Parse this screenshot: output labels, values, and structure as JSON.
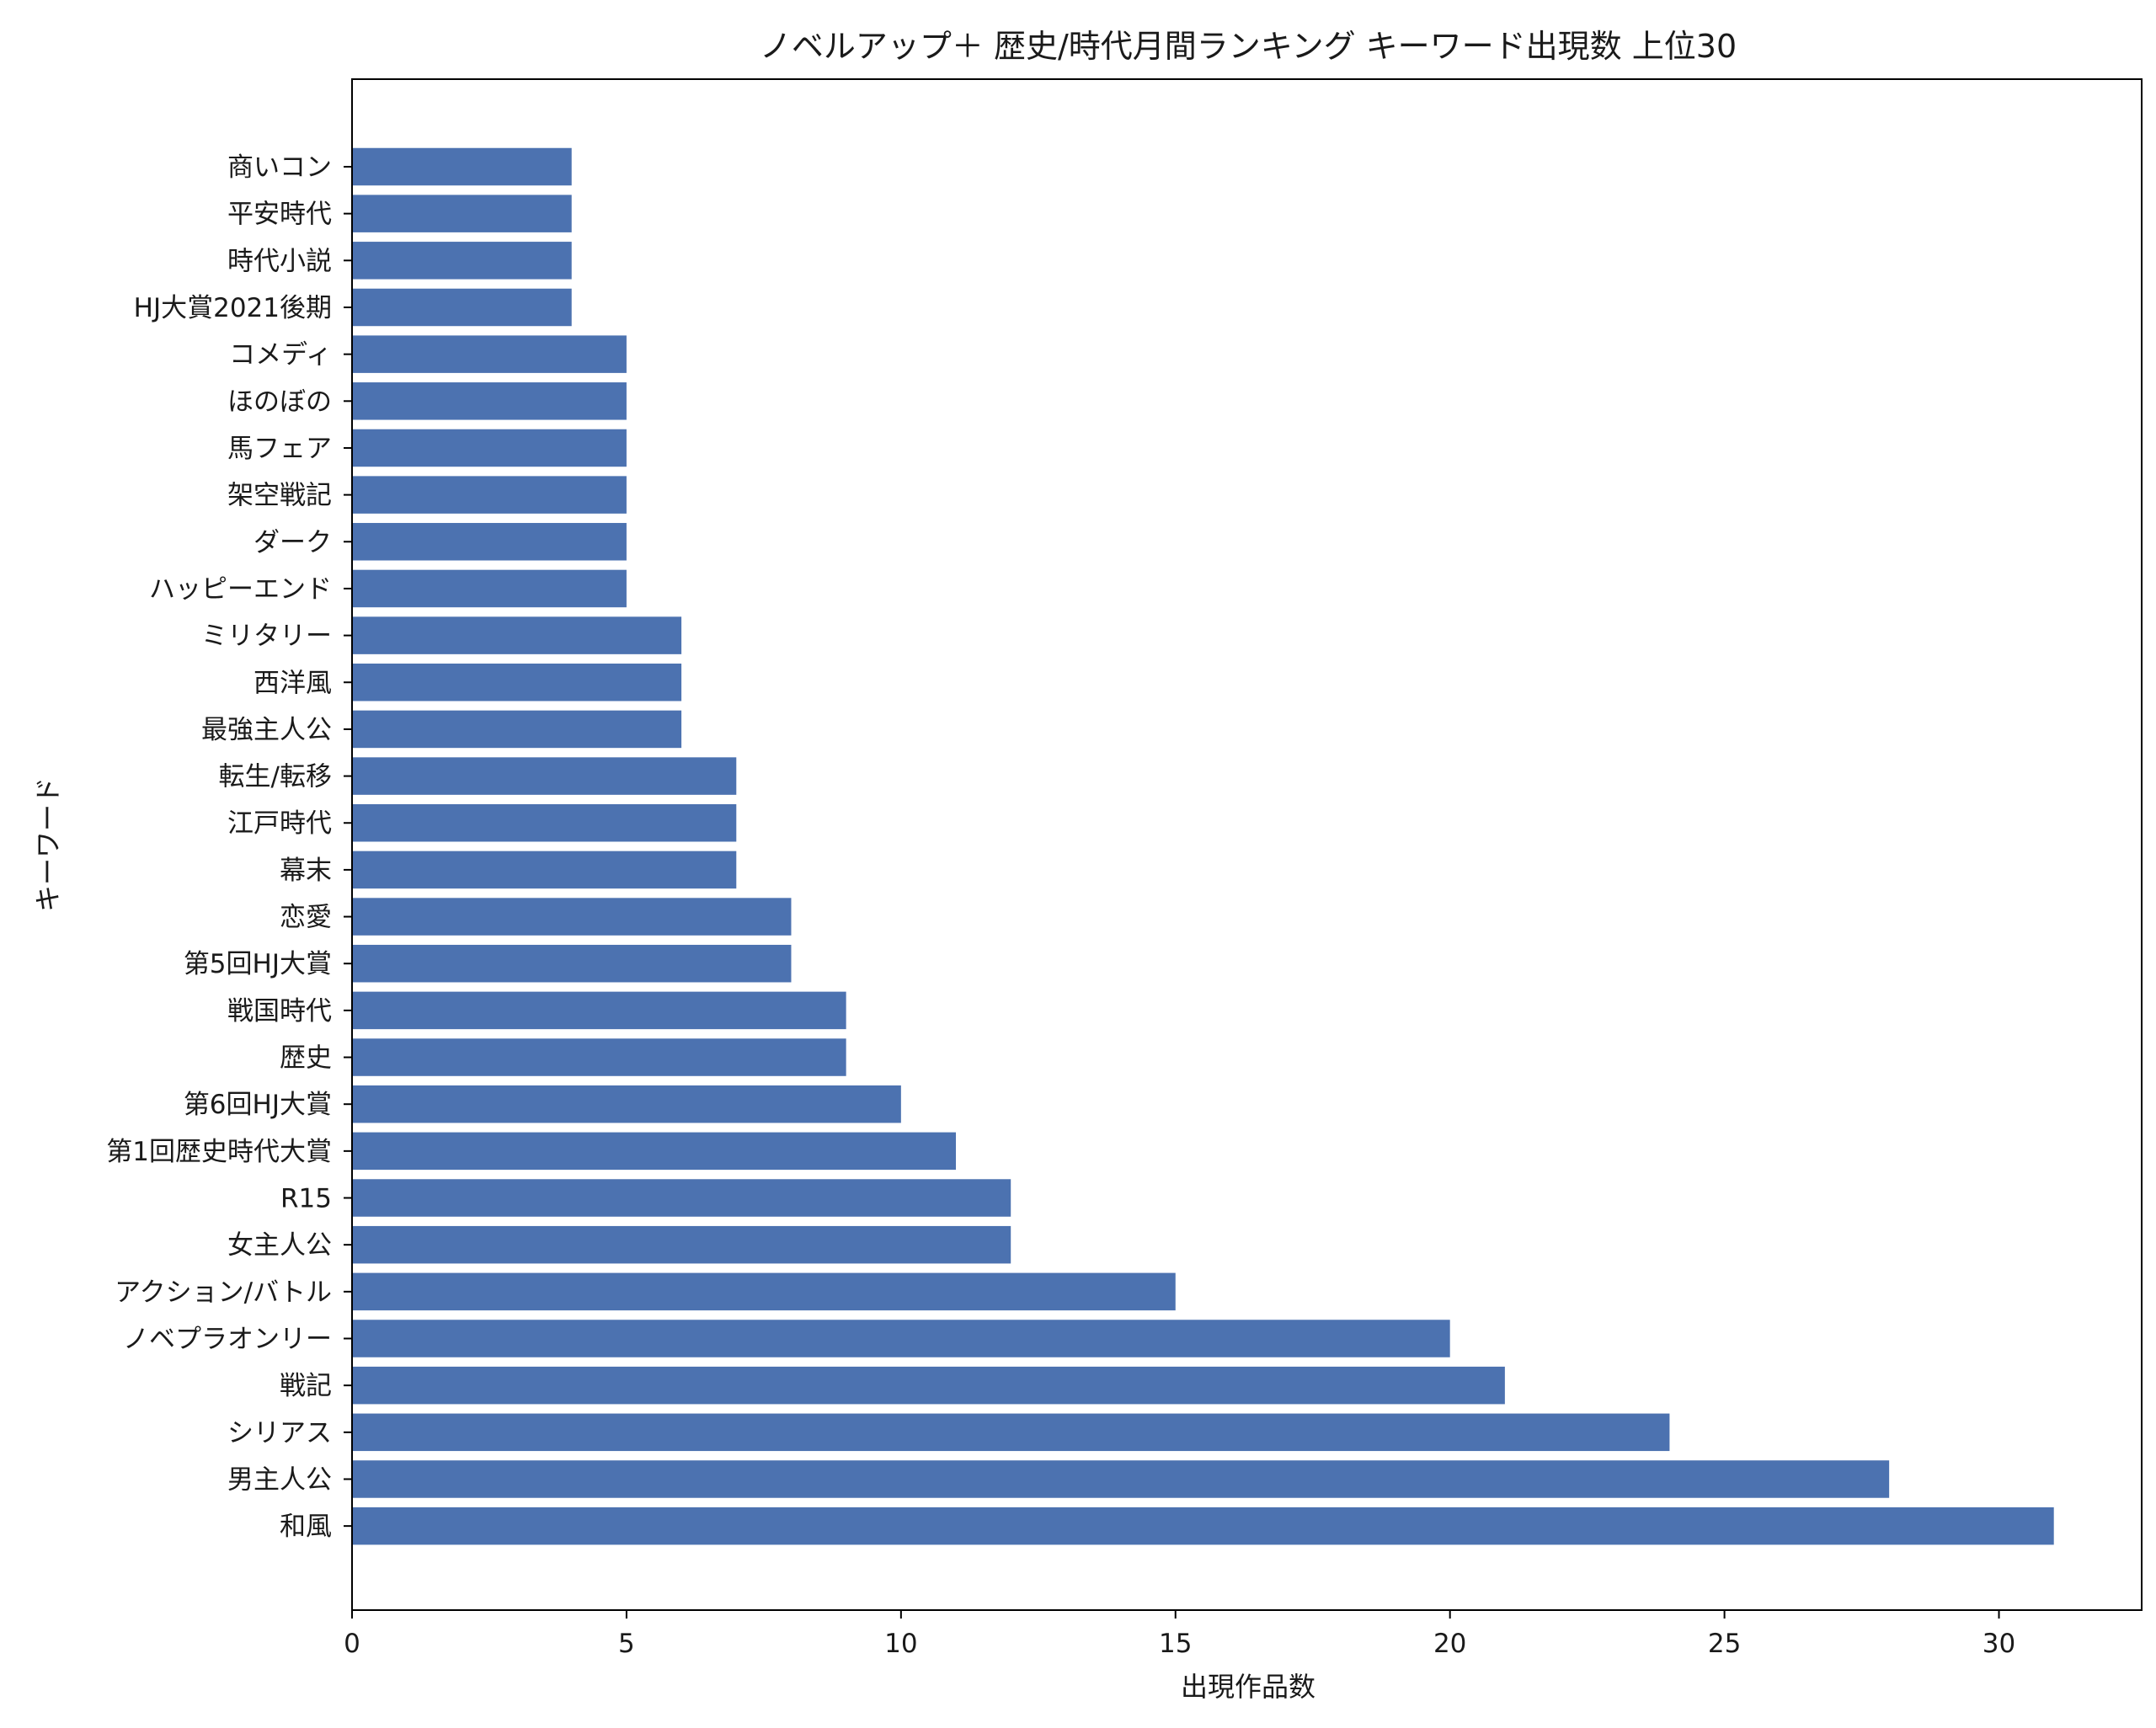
{
  "chart_data": {
    "type": "bar",
    "orientation": "horizontal",
    "title": "ノベルアップ＋ 歴史/時代月間ランキング キーワード出現数 上位30",
    "xlabel": "出現作品数",
    "ylabel": "キーワード",
    "xlim": [
      0,
      32.6
    ],
    "xticks": [
      0,
      5,
      10,
      15,
      20,
      25,
      30
    ],
    "grid": false,
    "bar_color": "#4c72b0",
    "categories": [
      "商いコン",
      "平安時代",
      "時代小説",
      "HJ大賞2021後期",
      "コメディ",
      "ほのぼの",
      "馬フェア",
      "架空戦記",
      "ダーク",
      "ハッピーエンド",
      "ミリタリー",
      "西洋風",
      "最強主人公",
      "転生/転移",
      "江戸時代",
      "幕末",
      "恋愛",
      "第5回HJ大賞",
      "戦国時代",
      "歴史",
      "第6回HJ大賞",
      "第1回歴史時代大賞",
      "R15",
      "女主人公",
      "アクション/バトル",
      "ノベプラオンリー",
      "戦記",
      "シリアス",
      "男主人公",
      "和風"
    ],
    "values": [
      4,
      4,
      4,
      4,
      5,
      5,
      5,
      5,
      5,
      5,
      6,
      6,
      6,
      7,
      7,
      7,
      8,
      8,
      9,
      9,
      10,
      11,
      12,
      12,
      15,
      20,
      21,
      24,
      28,
      31
    ]
  }
}
